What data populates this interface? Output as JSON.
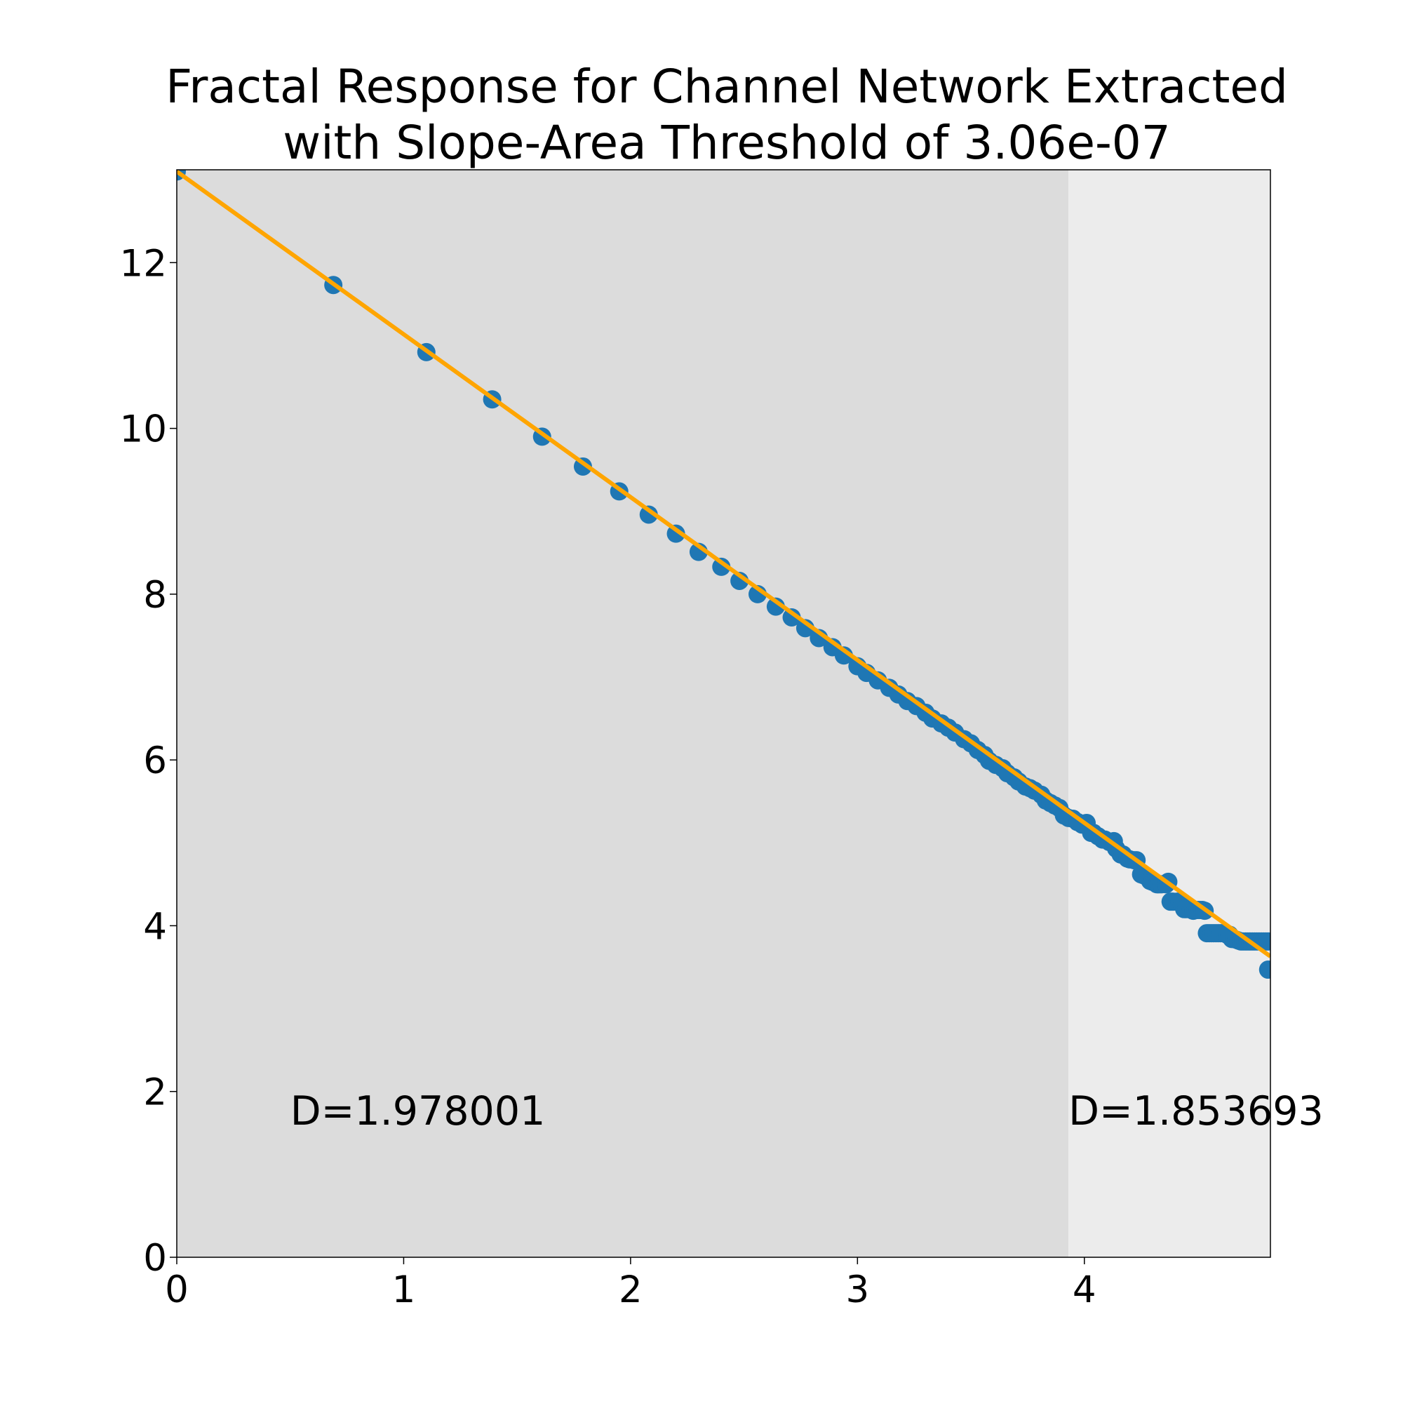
{
  "chart_data": {
    "type": "scatter",
    "title_lines": [
      "Fractal Response for Channel Network Extracted",
      "with Slope-Area Threshold of 3.06e-07"
    ],
    "xlabel": "",
    "ylabel": "",
    "xlim": [
      0,
      4.82
    ],
    "ylim": [
      0,
      13.12
    ],
    "x_ticks": [
      0,
      1,
      2,
      3,
      4
    ],
    "y_ticks": [
      0,
      2,
      4,
      6,
      8,
      10,
      12
    ],
    "x_tick_labels": [
      "0",
      "1",
      "2",
      "3",
      "4"
    ],
    "y_tick_labels": [
      "0",
      "2",
      "4",
      "6",
      "8",
      "10",
      "12"
    ],
    "grid": false,
    "regions": [
      {
        "x_start": 0,
        "x_end": 3.93,
        "color": "#dcdcdc"
      },
      {
        "x_start": 3.93,
        "x_end": 4.82,
        "color": "#ececec"
      }
    ],
    "annotations": [
      {
        "text": "D=1.978001",
        "x": 0.5,
        "y": 1.6
      },
      {
        "text": "D=1.853693",
        "x": 3.93,
        "y": 1.6
      }
    ],
    "series": [
      {
        "marker_color": "#1f77b4",
        "x": [
          0.0,
          0.69,
          1.1,
          1.39,
          1.61,
          1.79,
          1.95,
          2.08,
          2.2,
          2.3,
          2.4,
          2.48,
          2.56,
          2.64,
          2.71,
          2.77,
          2.83,
          2.89,
          2.94,
          3.0,
          3.04,
          3.09,
          3.14,
          3.18,
          3.22,
          3.26,
          3.3,
          3.33,
          3.37,
          3.4,
          3.43,
          3.47,
          3.5,
          3.53,
          3.56,
          3.58,
          3.61,
          3.64,
          3.66,
          3.69,
          3.71,
          3.74,
          3.76,
          3.78,
          3.81,
          3.83,
          3.85,
          3.87,
          3.89,
          3.91,
          3.93,
          3.95,
          3.97,
          3.99,
          4.01,
          4.03,
          4.04,
          4.06,
          4.08,
          4.09,
          4.11,
          4.13,
          4.14,
          4.16,
          4.17,
          4.19,
          4.2,
          4.22,
          4.23,
          4.25,
          4.26,
          4.28,
          4.29,
          4.3,
          4.32,
          4.33,
          4.34,
          4.36,
          4.37,
          4.38,
          4.39,
          4.41,
          4.42,
          4.43,
          4.44,
          4.45,
          4.47,
          4.48,
          4.49,
          4.5,
          4.51,
          4.52,
          4.53,
          4.54,
          4.55,
          4.56,
          4.57,
          4.58,
          4.59,
          4.6,
          4.61,
          4.62,
          4.63,
          4.64,
          4.65,
          4.66,
          4.67,
          4.68,
          4.69,
          4.7,
          4.71,
          4.72,
          4.73,
          4.74,
          4.75,
          4.76,
          4.77,
          4.78,
          4.79,
          4.8,
          4.81,
          4.81
        ],
        "y": [
          13.1,
          11.73,
          10.92,
          10.35,
          9.9,
          9.54,
          9.24,
          8.96,
          8.73,
          8.51,
          8.33,
          8.16,
          8.0,
          7.85,
          7.72,
          7.59,
          7.47,
          7.36,
          7.26,
          7.13,
          7.05,
          6.96,
          6.87,
          6.79,
          6.71,
          6.65,
          6.57,
          6.5,
          6.44,
          6.39,
          6.33,
          6.25,
          6.2,
          6.12,
          6.06,
          5.99,
          5.94,
          5.9,
          5.84,
          5.79,
          5.74,
          5.68,
          5.66,
          5.63,
          5.58,
          5.51,
          5.48,
          5.45,
          5.42,
          5.33,
          5.3,
          5.29,
          5.25,
          5.22,
          5.24,
          5.12,
          5.12,
          5.08,
          5.04,
          5.04,
          5.01,
          5.02,
          4.93,
          4.86,
          4.86,
          4.81,
          4.8,
          4.79,
          4.79,
          4.62,
          4.61,
          4.58,
          4.54,
          4.53,
          4.5,
          4.5,
          4.5,
          4.5,
          4.53,
          4.29,
          4.29,
          4.29,
          4.29,
          4.26,
          4.2,
          4.2,
          4.2,
          4.18,
          4.19,
          4.19,
          4.19,
          4.19,
          4.18,
          3.91,
          3.91,
          3.91,
          3.91,
          3.91,
          3.91,
          3.91,
          3.91,
          3.91,
          3.89,
          3.89,
          3.84,
          3.84,
          3.83,
          3.82,
          3.81,
          3.81,
          3.81,
          3.81,
          3.81,
          3.81,
          3.81,
          3.81,
          3.81,
          3.81,
          3.81,
          3.81,
          3.81,
          3.47
        ]
      },
      {
        "line_color": "#ffa500",
        "x": [
          0.0,
          4.82
        ],
        "y": [
          13.1,
          3.63
        ]
      }
    ]
  }
}
